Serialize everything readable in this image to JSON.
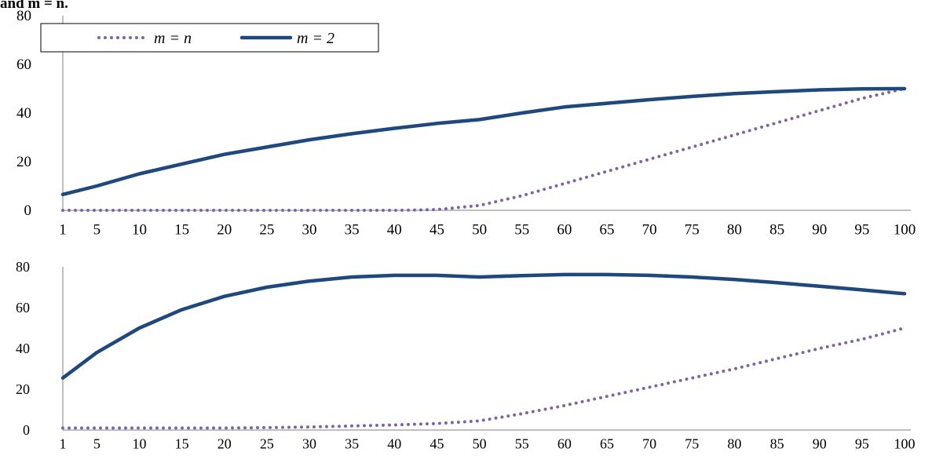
{
  "caption": "and m = n.",
  "colors": {
    "m_equals_n": "#8064A2",
    "m_equals_2": "#1F497D",
    "axis": "#808080"
  },
  "chart_data": [
    {
      "type": "line",
      "title": "",
      "xlabel": "",
      "ylabel": "",
      "categories": [
        "1",
        "5",
        "10",
        "15",
        "20",
        "25",
        "30",
        "35",
        "40",
        "45",
        "50",
        "55",
        "60",
        "65",
        "70",
        "75",
        "80",
        "85",
        "90",
        "95",
        "100"
      ],
      "ylim": [
        0,
        80
      ],
      "yticks": [
        0,
        20,
        40,
        60,
        80
      ],
      "grid": false,
      "legend": "top-left",
      "series": [
        {
          "name": "m = n",
          "style": "dotted",
          "points": [
            [
              1,
              0
            ],
            [
              5,
              0
            ],
            [
              10,
              0
            ],
            [
              15,
              0
            ],
            [
              20,
              0
            ],
            [
              25,
              0
            ],
            [
              30,
              0
            ],
            [
              35,
              0
            ],
            [
              40,
              0
            ],
            [
              45,
              0.3
            ],
            [
              50,
              2
            ],
            [
              55,
              6
            ],
            [
              60,
              11
            ],
            [
              65,
              16
            ],
            [
              70,
              21
            ],
            [
              75,
              26
            ],
            [
              80,
              31
            ],
            [
              85,
              36
            ],
            [
              90,
              41
            ],
            [
              95,
              46
            ],
            [
              100,
              50
            ]
          ]
        },
        {
          "name": "m = 2",
          "style": "solid",
          "points": [
            [
              1,
              6.5
            ],
            [
              5,
              10
            ],
            [
              10,
              15
            ],
            [
              15,
              19
            ],
            [
              20,
              23
            ],
            [
              25,
              26
            ],
            [
              30,
              29
            ],
            [
              35,
              31.5
            ],
            [
              40,
              33.7
            ],
            [
              45,
              35.7
            ],
            [
              50,
              37.3
            ],
            [
              55,
              40
            ],
            [
              60,
              42.5
            ],
            [
              65,
              44
            ],
            [
              70,
              45.5
            ],
            [
              75,
              46.8
            ],
            [
              80,
              48
            ],
            [
              85,
              48.8
            ],
            [
              90,
              49.5
            ],
            [
              95,
              49.9
            ],
            [
              100,
              50
            ]
          ]
        }
      ]
    },
    {
      "type": "line",
      "title": "",
      "xlabel": "",
      "ylabel": "",
      "categories": [
        "1",
        "5",
        "10",
        "15",
        "20",
        "25",
        "30",
        "35",
        "40",
        "45",
        "50",
        "55",
        "60",
        "65",
        "70",
        "75",
        "80",
        "85",
        "90",
        "95",
        "100"
      ],
      "ylim": [
        0,
        80
      ],
      "yticks": [
        0,
        20,
        40,
        60,
        80
      ],
      "grid": false,
      "legend": "none",
      "series": [
        {
          "name": "m = n",
          "style": "dotted",
          "points": [
            [
              1,
              1
            ],
            [
              5,
              1
            ],
            [
              10,
              1
            ],
            [
              15,
              1
            ],
            [
              20,
              1
            ],
            [
              25,
              1.2
            ],
            [
              30,
              1.5
            ],
            [
              35,
              2
            ],
            [
              40,
              2.5
            ],
            [
              45,
              3.2
            ],
            [
              50,
              4.5
            ],
            [
              55,
              8
            ],
            [
              60,
              12
            ],
            [
              65,
              16.5
            ],
            [
              70,
              21
            ],
            [
              75,
              25.5
            ],
            [
              80,
              30
            ],
            [
              85,
              35
            ],
            [
              90,
              40
            ],
            [
              95,
              44.5
            ],
            [
              100,
              50
            ]
          ]
        },
        {
          "name": "m = 2",
          "style": "solid",
          "points": [
            [
              1,
              25.5
            ],
            [
              5,
              38
            ],
            [
              10,
              50
            ],
            [
              15,
              59
            ],
            [
              20,
              65.5
            ],
            [
              25,
              70
            ],
            [
              30,
              73
            ],
            [
              35,
              75
            ],
            [
              40,
              75.8
            ],
            [
              45,
              75.8
            ],
            [
              50,
              75
            ],
            [
              55,
              75.7
            ],
            [
              60,
              76.2
            ],
            [
              65,
              76.2
            ],
            [
              70,
              75.8
            ],
            [
              75,
              75
            ],
            [
              80,
              73.8
            ],
            [
              85,
              72.2
            ],
            [
              90,
              70.5
            ],
            [
              95,
              68.7
            ],
            [
              100,
              66.8
            ]
          ]
        }
      ]
    }
  ]
}
